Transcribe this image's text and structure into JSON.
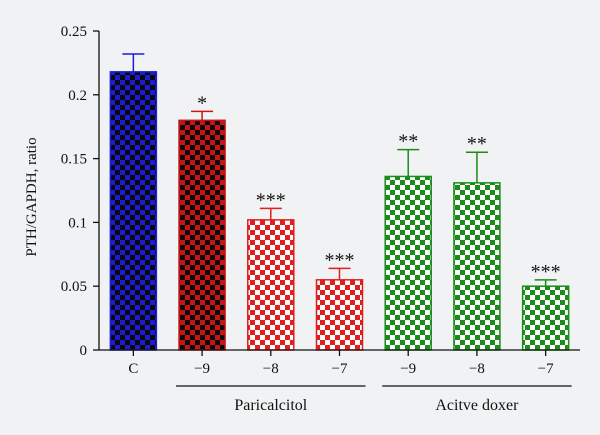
{
  "chart_data": {
    "type": "bar",
    "ylabel": "PTH/GAPDH, ratio",
    "ylim": [
      0,
      0.25
    ],
    "yticks": [
      "0",
      "0.05",
      "0.1",
      "0.15",
      "0.2",
      "0.25"
    ],
    "categories": [
      "C",
      "−9",
      "−8",
      "−7",
      "−9",
      "−8",
      "−7"
    ],
    "values": [
      0.218,
      0.18,
      0.102,
      0.055,
      0.136,
      0.131,
      0.05
    ],
    "errors": [
      0.014,
      0.007,
      0.009,
      0.009,
      0.021,
      0.024,
      0.005
    ],
    "significance": [
      "",
      "*",
      "***",
      "***",
      "**",
      "**",
      "***"
    ],
    "bar_colors": [
      "#1c1cd6",
      "#c81414",
      "#e01e1e",
      "#e01e1e",
      "#1a8c1a",
      "#1a8c1a",
      "#1a8c1a"
    ],
    "bar_patterns": [
      "dense",
      "dense",
      "light",
      "light",
      "light",
      "light",
      "light"
    ],
    "groups": [
      {
        "label": "Paricalcitol",
        "from": 1,
        "to": 3
      },
      {
        "label": "Acitve doxer",
        "from": 4,
        "to": 6
      }
    ]
  }
}
